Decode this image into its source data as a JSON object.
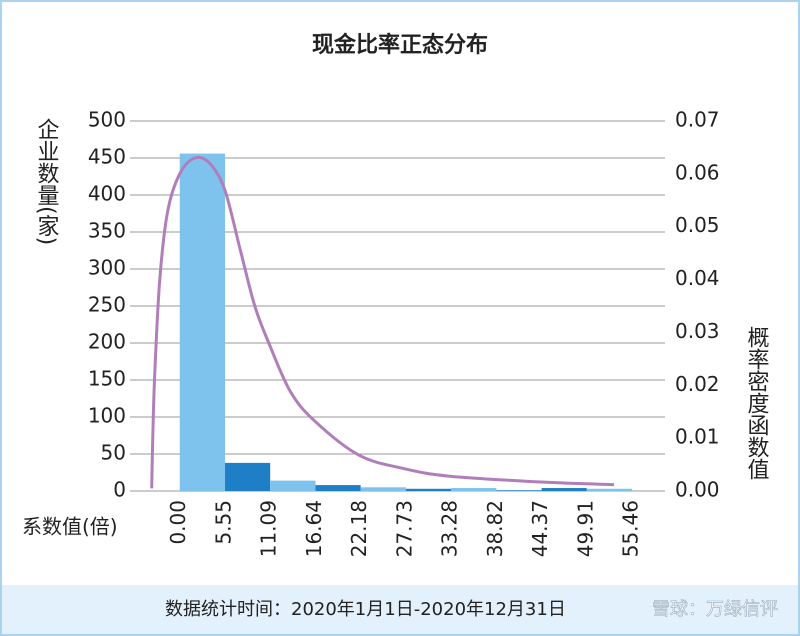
{
  "chart_data": {
    "type": "histogram",
    "title": "现金比率正态分布",
    "ylabel": "企业数量(家)",
    "y2label": "概率密度函数值",
    "xlabel": "系数值(倍)",
    "footer": "数据统计时间：2020年1月1日-2020年12月31日",
    "watermark": "雪球：万绿信评",
    "bins": [
      0,
      5.55,
      11.09,
      16.64,
      22.18,
      27.73,
      33.28,
      38.82,
      44.37,
      49.91,
      55.46
    ],
    "values": [
      456,
      38,
      14,
      8,
      5,
      3,
      4,
      1,
      4,
      3
    ],
    "colors": [
      "#7dc3ee",
      "#1f7fc6",
      "#7dc3ee",
      "#1f7fc6",
      "#7dc3ee",
      "#1f7fc6",
      "#7dc3ee",
      "#1f7fc6",
      "#1f7fc6",
      "#7dc3ee"
    ],
    "xlim": [
      -6.1,
      59.5
    ],
    "xticks": [
      {
        "value": 0,
        "label": "0.00"
      },
      5.55,
      11.09,
      16.64,
      22.18,
      27.73,
      33.28,
      38.82,
      44.37,
      49.91,
      55.46
    ],
    "ylim": [
      0,
      500
    ],
    "yticks": [
      0,
      50,
      100,
      150,
      200,
      250,
      300,
      350,
      400,
      450,
      500
    ],
    "y2lim": [
      0,
      0.07
    ],
    "y2ticks": [
      {
        "value": 0,
        "label": "0.00"
      },
      0.01,
      0.02,
      0.03,
      0.04,
      0.05,
      0.06,
      0.07
    ],
    "grid": true,
    "curve": {
      "axis": "y2",
      "color": "#b07fb9",
      "x": [
        -3.44,
        -3.31,
        -3.07,
        -2.45,
        -1.47,
        0,
        1.84,
        3.68,
        5.52,
        7.36,
        9.2,
        10.92,
        13.5,
        16.44,
        21.96,
        27.6,
        33.13,
        44.3,
        53.25
      ],
      "y": [
        0.0005,
        0.01,
        0.022,
        0.04,
        0.053,
        0.06,
        0.063,
        0.062,
        0.057,
        0.046,
        0.035,
        0.028,
        0.019,
        0.0134,
        0.0068,
        0.0042,
        0.0028,
        0.0017,
        0.0012
      ]
    }
  }
}
